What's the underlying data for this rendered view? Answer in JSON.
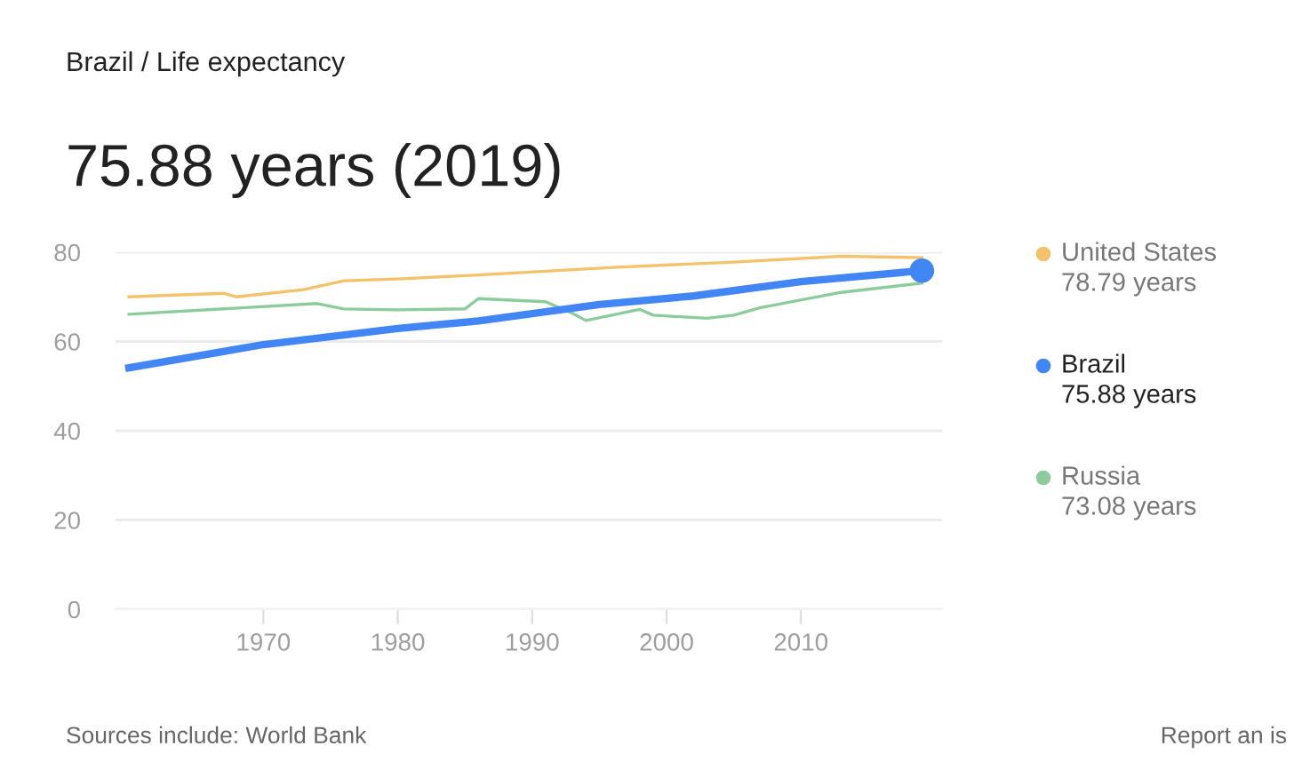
{
  "chart_data": {
    "type": "line",
    "title": "Brazil / Life expectancy",
    "subtitle": "75.88 years (2019)",
    "series": [
      {
        "name": "United States",
        "color": "#f4c26b",
        "x": [
          1960,
          1967,
          1968,
          1973,
          1976,
          1980,
          1986,
          1996,
          2005,
          2013,
          2019
        ],
        "values": [
          70.0,
          70.8,
          70.0,
          71.6,
          73.6,
          74.0,
          74.9,
          76.6,
          77.8,
          79.1,
          78.79
        ]
      },
      {
        "name": "Brazil",
        "color": "#4285f4",
        "x": [
          1960,
          1970,
          1980,
          1986,
          1995,
          2002,
          2010,
          2019
        ],
        "values": [
          54.1,
          59.3,
          62.9,
          64.6,
          68.3,
          70.2,
          73.4,
          75.88
        ]
      },
      {
        "name": "Russia",
        "color": "#8ccc9c",
        "x": [
          1960,
          1974,
          1976,
          1980,
          1985,
          1986,
          1991,
          1993,
          1994,
          1998,
          1999,
          2003,
          2005,
          2007,
          2013,
          2019
        ],
        "values": [
          66.1,
          68.5,
          67.3,
          67.1,
          67.3,
          69.6,
          68.9,
          66.3,
          64.7,
          67.2,
          65.9,
          65.2,
          65.9,
          67.6,
          71.0,
          73.08
        ]
      },
      {
        "type": "scatter",
        "marker": "circle",
        "color": "#4285f4",
        "x": [
          2019
        ],
        "values": [
          75.88
        ]
      }
    ],
    "xlim": [
      1959,
      2020.5
    ],
    "xticks": [
      1970,
      1980,
      1990,
      2000,
      2010
    ],
    "ylim": [
      0,
      80
    ],
    "yticks": [
      0,
      20,
      40,
      60,
      80
    ],
    "grid": "y",
    "legend": "right",
    "marker": "none",
    "annotations": [
      "78.79 years",
      "75.88 years",
      "73.08 years",
      "Sources include: World Bank",
      "Report an is"
    ]
  }
}
